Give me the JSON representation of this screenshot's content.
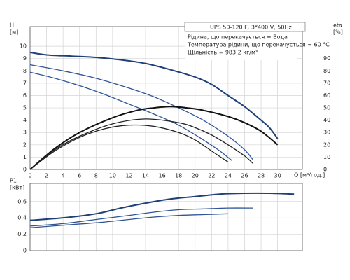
{
  "chart_data": [
    {
      "type": "line",
      "legend_lines": [
        "UPS 50-120 F, 3*400 V, 50Hz",
        "Рідина, що перекачується = Вода",
        "Температура рідини, що перекачується = 60 °C",
        "Щільність = 983.2 кг/м³"
      ],
      "y_label": "H",
      "y_unit": "[м]",
      "y2_label": "eta",
      "y2_unit": "[%]",
      "x_label": "Q [м³/год.]",
      "xlim": [
        0,
        33
      ],
      "xticks": [
        0,
        2,
        4,
        6,
        8,
        10,
        12,
        14,
        16,
        18,
        20,
        22,
        24,
        26,
        28,
        30
      ],
      "ylim": [
        0,
        11.6
      ],
      "yticks": [
        0,
        1,
        2,
        3,
        4,
        5,
        6,
        7,
        8,
        9,
        10
      ],
      "y2lim": [
        0,
        116
      ],
      "y2ticks": [
        0,
        10,
        20,
        30,
        40,
        50,
        60,
        70,
        80,
        90
      ],
      "grid": true,
      "series": [
        {
          "color": "#1f3f78",
          "width": 2,
          "x": [
            0,
            2,
            5,
            8,
            11,
            14,
            17,
            20,
            22,
            24,
            26,
            28,
            29,
            30
          ],
          "values": [
            9.5,
            9.3,
            9.2,
            9.1,
            8.9,
            8.6,
            8.1,
            7.5,
            6.9,
            6.0,
            5.1,
            4.0,
            3.4,
            2.5
          ]
        },
        {
          "color": "#2f5597",
          "width": 1.3,
          "x": [
            0,
            4,
            8,
            12,
            15,
            18,
            21,
            24,
            26,
            27
          ],
          "values": [
            8.5,
            8.0,
            7.4,
            6.6,
            5.9,
            5.0,
            4.0,
            2.7,
            1.6,
            0.8
          ]
        },
        {
          "color": "#2f5597",
          "width": 1.3,
          "x": [
            0,
            3,
            6,
            9,
            12,
            15,
            18,
            21,
            23,
            24.5
          ],
          "values": [
            7.9,
            7.4,
            6.8,
            6.1,
            5.3,
            4.5,
            3.6,
            2.4,
            1.5,
            0.7
          ]
        },
        {
          "color": "#111111",
          "width": 2,
          "axis": "y2",
          "x": [
            0,
            3,
            6,
            10,
            13,
            15,
            17,
            19,
            21,
            24,
            26,
            28,
            30
          ],
          "values": [
            0,
            17,
            30,
            42,
            48,
            50,
            51,
            50,
            48,
            43,
            38,
            31,
            20
          ]
        },
        {
          "color": "#222222",
          "width": 1.3,
          "axis": "y2",
          "x": [
            0,
            3,
            6,
            10,
            14,
            18,
            20,
            22,
            24,
            26,
            27
          ],
          "values": [
            0,
            16,
            27,
            37,
            41,
            38,
            34,
            28,
            20,
            11,
            5
          ]
        },
        {
          "color": "#222222",
          "width": 1.3,
          "axis": "y2",
          "x": [
            0,
            3,
            6,
            9,
            12,
            15,
            18,
            20,
            22,
            24
          ],
          "values": [
            0,
            15,
            26,
            33,
            36,
            35,
            30,
            24,
            15,
            6
          ]
        }
      ]
    },
    {
      "type": "line",
      "y_label": "P1",
      "y_unit": "[кВт]",
      "xlim": [
        0,
        33
      ],
      "ylim": [
        0,
        0.82
      ],
      "yticks": [
        0,
        {
          "value": 0.2,
          "label": "0,2"
        },
        {
          "value": 0.4,
          "label": "0,4"
        },
        {
          "value": 0.6,
          "label": "0,6"
        }
      ],
      "grid": true,
      "series": [
        {
          "color": "#1f3f78",
          "width": 2,
          "x": [
            0,
            4,
            8,
            11,
            14,
            17,
            20,
            23,
            26,
            29,
            32
          ],
          "values": [
            0.37,
            0.4,
            0.45,
            0.52,
            0.58,
            0.63,
            0.66,
            0.69,
            0.7,
            0.7,
            0.69
          ]
        },
        {
          "color": "#2f5597",
          "width": 1.3,
          "x": [
            0,
            4,
            8,
            12,
            15,
            18,
            21,
            24,
            27
          ],
          "values": [
            0.3,
            0.33,
            0.38,
            0.43,
            0.47,
            0.5,
            0.51,
            0.52,
            0.52
          ]
        },
        {
          "color": "#2f5597",
          "width": 1.3,
          "x": [
            0,
            4,
            8,
            12,
            15,
            18,
            21,
            24
          ],
          "values": [
            0.28,
            0.31,
            0.34,
            0.38,
            0.41,
            0.43,
            0.44,
            0.45
          ]
        }
      ]
    }
  ]
}
